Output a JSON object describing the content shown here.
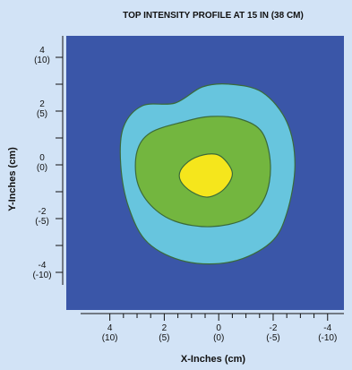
{
  "chart_data": {
    "type": "heatmap",
    "title": "TOP INTENSITY PROFILE AT 15 IN (38 CM)",
    "xlabel": "X-Inches (cm)",
    "ylabel": "Y-Inches (cm)",
    "xlim": [
      5.6,
      -4.6
    ],
    "ylim": [
      -5.4,
      4.8
    ],
    "x_ticks": [
      {
        "value": 4,
        "label": "4",
        "sublabel": "(10)"
      },
      {
        "value": 2,
        "label": "2",
        "sublabel": "(5)"
      },
      {
        "value": 0,
        "label": "0",
        "sublabel": "(0)"
      },
      {
        "value": -2,
        "label": "-2",
        "sublabel": "(-5)"
      },
      {
        "value": -4,
        "label": "-4",
        "sublabel": "(-10)"
      }
    ],
    "y_ticks": [
      {
        "value": 4,
        "label": "4",
        "sublabel": "(10)"
      },
      {
        "value": 2,
        "label": "2",
        "sublabel": "(5)"
      },
      {
        "value": 0,
        "label": "0",
        "sublabel": "(0)"
      },
      {
        "value": -2,
        "label": "-2",
        "sublabel": "(-5)"
      },
      {
        "value": -4,
        "label": "-4",
        "sublabel": "(-10)"
      }
    ],
    "x_minor_step": 0.5,
    "y_minor_step": 1,
    "colors": {
      "background": "#3a56a8",
      "outer": "#67c5de",
      "middle": "#73b63f",
      "center": "#f5e61c",
      "outline": "#3a6a3a"
    },
    "contours": [
      {
        "level": "outer",
        "points": [
          [
            1.6,
            2.3
          ],
          [
            0.6,
            2.9
          ],
          [
            -0.4,
            3.0
          ],
          [
            -1.6,
            2.7
          ],
          [
            -2.5,
            1.6
          ],
          [
            -2.8,
            0.0
          ],
          [
            -2.5,
            -1.8
          ],
          [
            -1.9,
            -2.9
          ],
          [
            -0.5,
            -3.6
          ],
          [
            1.2,
            -3.6
          ],
          [
            2.6,
            -2.9
          ],
          [
            3.3,
            -1.6
          ],
          [
            3.6,
            0.0
          ],
          [
            3.5,
            1.4
          ],
          [
            2.8,
            2.2
          ]
        ]
      },
      {
        "level": "middle",
        "points": [
          [
            1.3,
            1.6
          ],
          [
            0.3,
            1.8
          ],
          [
            -0.8,
            1.7
          ],
          [
            -1.6,
            1.2
          ],
          [
            -1.9,
            0.0
          ],
          [
            -1.7,
            -1.2
          ],
          [
            -1.0,
            -2.0
          ],
          [
            0.3,
            -2.3
          ],
          [
            1.6,
            -2.1
          ],
          [
            2.5,
            -1.5
          ],
          [
            3.0,
            -0.6
          ],
          [
            3.0,
            0.5
          ],
          [
            2.5,
            1.2
          ]
        ]
      },
      {
        "level": "center",
        "points": [
          [
            1.0,
            0.2
          ],
          [
            0.4,
            0.4
          ],
          [
            -0.1,
            0.3
          ],
          [
            -0.5,
            -0.3
          ],
          [
            -0.2,
            -0.9
          ],
          [
            0.4,
            -1.2
          ],
          [
            1.0,
            -1.0
          ],
          [
            1.4,
            -0.6
          ],
          [
            1.4,
            -0.2
          ]
        ]
      }
    ]
  }
}
